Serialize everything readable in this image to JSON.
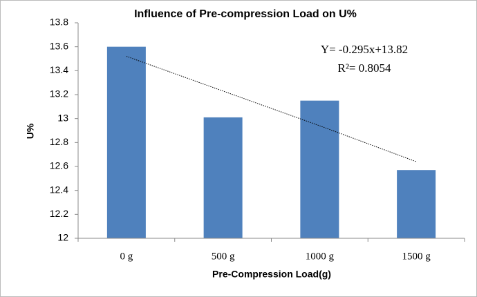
{
  "chart_data": {
    "type": "bar",
    "title": "Influence of Pre-compression Load on U%",
    "x_label": "Pre-Compression Load(g)",
    "y_label": "U%",
    "categories": [
      "0 g",
      "500 g",
      "1000 g",
      "1500 g"
    ],
    "values": [
      13.6,
      13.01,
      13.15,
      12.57
    ],
    "color": "#4f81bd",
    "trend_values": [
      13.52,
      13.23,
      12.94,
      12.64
    ],
    "annotations": [
      "Y= -0.295x+13.82",
      "R²= 0.8054"
    ],
    "ylim": [
      12,
      13.8
    ],
    "yticks": [
      12,
      12.2,
      12.4,
      12.6,
      12.8,
      13,
      13.2,
      13.4,
      13.6,
      13.8
    ],
    "grid": false
  }
}
